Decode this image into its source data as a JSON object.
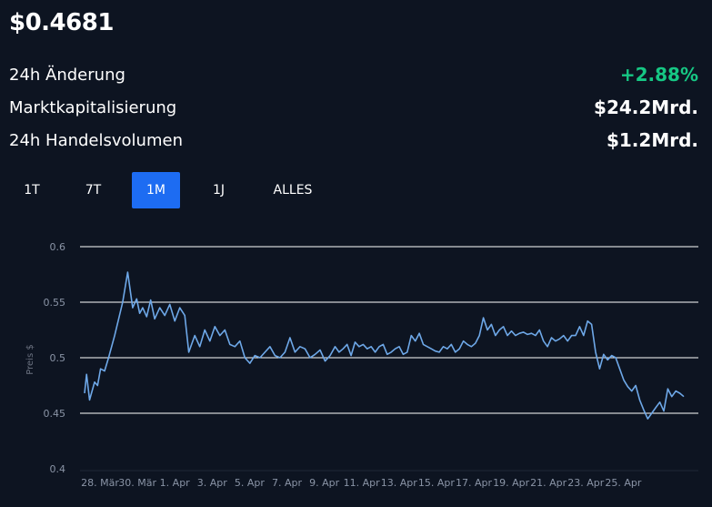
{
  "price": "$0.4681",
  "stats": [
    {
      "label": "24h Änderung",
      "value": "+2.88%",
      "color": "#16c784"
    },
    {
      "label": "Marktkapitalisierung",
      "value": "$24.2Mrd.",
      "color": "#ffffff"
    },
    {
      "label": "24h Handelsvolumen",
      "value": "$1.2Mrd.",
      "color": "#ffffff"
    }
  ],
  "tabs": [
    {
      "label": "1T",
      "active": false
    },
    {
      "label": "7T",
      "active": false
    },
    {
      "label": "1M",
      "active": true
    },
    {
      "label": "1J",
      "active": false
    },
    {
      "label": "ALLES",
      "active": false
    }
  ],
  "chart_data": {
    "type": "line",
    "ylabel": "Preis $",
    "ylim": [
      0.4,
      0.6
    ],
    "yticks": [
      "0.6",
      "0.55",
      "0.5",
      "0.45",
      "0.4"
    ],
    "xticks": [
      "28. Mär",
      "30. Mär",
      "1. Apr",
      "3. Apr",
      "5. Apr",
      "7. Apr",
      "9. Apr",
      "11. Apr",
      "13. Apr",
      "15. Apr",
      "17. Apr",
      "19. Apr",
      "21. Apr",
      "23. Apr",
      "25. Apr"
    ],
    "grid": true,
    "line_color": "#6ea8e8",
    "series": [
      {
        "x": [
          0,
          0.2,
          0.5,
          1.0,
          1.3,
          1.6,
          2.0,
          2.4,
          3.0,
          3.4,
          3.8,
          4.3,
          4.8,
          5.2,
          5.5,
          5.8,
          6.2,
          6.6,
          7.0,
          7.5,
          8.0,
          8.5,
          9.0,
          9.5,
          10.0,
          10.4,
          11.0,
          11.5,
          12.0,
          12.5,
          13.0,
          13.5,
          14.0,
          14.5,
          15.0,
          15.5,
          16.0,
          16.5,
          17.0,
          17.5,
          18.0,
          18.5,
          19.0,
          19.5,
          20.0,
          20.5,
          21.0,
          21.5,
          22.0,
          22.5,
          23.0,
          23.5,
          24.0,
          24.5,
          25.0,
          25.4,
          25.8,
          26.2,
          26.6,
          27.0,
          27.4,
          27.8,
          28.2,
          28.6,
          29.0,
          29.4,
          29.8,
          30.2,
          30.6,
          31.0,
          31.4,
          31.8,
          32.2,
          32.6,
          33.0,
          33.4,
          33.8,
          34.2,
          34.6,
          35.0,
          35.4,
          35.8,
          36.2,
          36.6,
          37.0,
          37.4,
          37.8,
          38.2,
          38.6,
          39.0,
          39.4,
          39.8,
          40.2,
          40.6,
          41.0,
          41.4,
          41.8,
          42.2,
          42.6,
          43.0,
          43.4,
          43.8,
          44.2,
          44.6,
          45.0,
          45.4,
          45.8,
          46.2,
          46.6,
          47.0,
          47.4,
          47.8,
          48.2,
          48.6,
          49.0,
          49.4,
          49.8,
          50.2,
          50.6,
          51.0,
          51.4,
          51.8,
          52.2,
          52.6,
          53.0,
          53.4,
          53.8,
          54.2,
          54.6,
          55.0,
          55.4,
          55.8,
          56.2,
          56.6,
          57.0,
          57.4,
          57.8,
          58.2,
          58.6,
          59.0,
          59.4,
          59.8
        ],
        "y": [
          0.468,
          0.485,
          0.462,
          0.478,
          0.475,
          0.49,
          0.488,
          0.5,
          0.52,
          0.535,
          0.55,
          0.577,
          0.545,
          0.553,
          0.54,
          0.545,
          0.537,
          0.552,
          0.535,
          0.545,
          0.538,
          0.548,
          0.533,
          0.545,
          0.538,
          0.505,
          0.52,
          0.51,
          0.525,
          0.515,
          0.528,
          0.52,
          0.525,
          0.512,
          0.51,
          0.515,
          0.5,
          0.495,
          0.502,
          0.5,
          0.505,
          0.51,
          0.502,
          0.5,
          0.505,
          0.518,
          0.505,
          0.51,
          0.508,
          0.5,
          0.503,
          0.507,
          0.497,
          0.502,
          0.51,
          0.505,
          0.508,
          0.512,
          0.502,
          0.514,
          0.51,
          0.512,
          0.508,
          0.51,
          0.505,
          0.51,
          0.512,
          0.503,
          0.505,
          0.508,
          0.51,
          0.503,
          0.505,
          0.52,
          0.515,
          0.522,
          0.512,
          0.51,
          0.508,
          0.506,
          0.505,
          0.51,
          0.508,
          0.512,
          0.505,
          0.508,
          0.515,
          0.512,
          0.51,
          0.513,
          0.52,
          0.536,
          0.525,
          0.53,
          0.52,
          0.525,
          0.528,
          0.52,
          0.524,
          0.52,
          0.522,
          0.523,
          0.521,
          0.522,
          0.52,
          0.525,
          0.515,
          0.51,
          0.518,
          0.515,
          0.517,
          0.52,
          0.515,
          0.52,
          0.52,
          0.528,
          0.52,
          0.533,
          0.53,
          0.505,
          0.49,
          0.503,
          0.498,
          0.502,
          0.5,
          0.49,
          0.48,
          0.474,
          0.47,
          0.475,
          0.462,
          0.453,
          0.445,
          0.45,
          0.455,
          0.46,
          0.452,
          0.472,
          0.465,
          0.47,
          0.468,
          0.465
        ]
      }
    ]
  }
}
